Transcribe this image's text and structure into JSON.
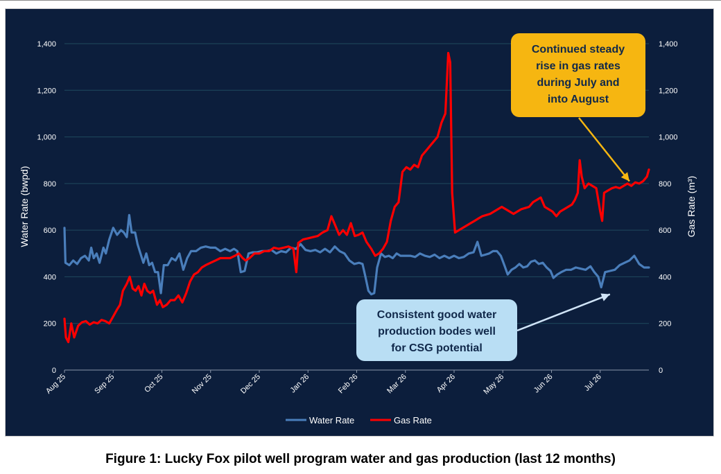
{
  "chart_data": {
    "type": "line",
    "x_categories": [
      "Aug 25",
      "Sep 25",
      "Oct 25",
      "Nov 25",
      "Dec 25",
      "Jan 26",
      "Feb 26",
      "Mar 26",
      "Apr 26",
      "May 26",
      "Jun 26",
      "Jul 26"
    ],
    "y_left_label": "Water Rate (bwpd)",
    "y_right_label": "Gas Rate (m³)",
    "y_left_ticks": [
      "0",
      "200",
      "400",
      "600",
      "800",
      "1,000",
      "1,200",
      "1,400"
    ],
    "y_right_ticks": [
      "0",
      "200",
      "400",
      "600",
      "800",
      "1,000",
      "1,200",
      "1,400"
    ],
    "ylim_left": [
      0,
      1400
    ],
    "ylim_right": [
      0,
      1400
    ],
    "grid": true,
    "legend_position": "bottom",
    "x_range_months": [
      0,
      12
    ],
    "series": [
      {
        "name": "Water Rate",
        "color": "#4a7ebb",
        "axis": "left",
        "points": [
          [
            0.0,
            610
          ],
          [
            0.02,
            460
          ],
          [
            0.1,
            450
          ],
          [
            0.18,
            470
          ],
          [
            0.26,
            455
          ],
          [
            0.34,
            480
          ],
          [
            0.42,
            490
          ],
          [
            0.5,
            470
          ],
          [
            0.55,
            525
          ],
          [
            0.6,
            480
          ],
          [
            0.66,
            500
          ],
          [
            0.72,
            460
          ],
          [
            0.8,
            525
          ],
          [
            0.85,
            500
          ],
          [
            0.92,
            560
          ],
          [
            1.0,
            610
          ],
          [
            1.08,
            580
          ],
          [
            1.16,
            600
          ],
          [
            1.22,
            590
          ],
          [
            1.28,
            570
          ],
          [
            1.33,
            665
          ],
          [
            1.38,
            590
          ],
          [
            1.45,
            590
          ],
          [
            1.5,
            540
          ],
          [
            1.56,
            500
          ],
          [
            1.62,
            460
          ],
          [
            1.68,
            500
          ],
          [
            1.74,
            450
          ],
          [
            1.8,
            460
          ],
          [
            1.86,
            420
          ],
          [
            1.92,
            420
          ],
          [
            1.98,
            330
          ],
          [
            2.04,
            450
          ],
          [
            2.12,
            450
          ],
          [
            2.2,
            480
          ],
          [
            2.28,
            470
          ],
          [
            2.36,
            500
          ],
          [
            2.44,
            430
          ],
          [
            2.52,
            480
          ],
          [
            2.6,
            510
          ],
          [
            2.7,
            510
          ],
          [
            2.8,
            525
          ],
          [
            2.9,
            530
          ],
          [
            3.0,
            525
          ],
          [
            3.1,
            525
          ],
          [
            3.2,
            510
          ],
          [
            3.3,
            520
          ],
          [
            3.4,
            510
          ],
          [
            3.48,
            520
          ],
          [
            3.55,
            510
          ],
          [
            3.62,
            420
          ],
          [
            3.7,
            425
          ],
          [
            3.78,
            500
          ],
          [
            3.86,
            505
          ],
          [
            3.95,
            505
          ],
          [
            4.05,
            510
          ],
          [
            4.15,
            510
          ],
          [
            4.25,
            515
          ],
          [
            4.35,
            500
          ],
          [
            4.45,
            510
          ],
          [
            4.55,
            505
          ],
          [
            4.65,
            525
          ],
          [
            4.75,
            520
          ],
          [
            4.85,
            540
          ],
          [
            4.95,
            515
          ],
          [
            5.05,
            510
          ],
          [
            5.15,
            515
          ],
          [
            5.25,
            505
          ],
          [
            5.35,
            520
          ],
          [
            5.45,
            505
          ],
          [
            5.55,
            530
          ],
          [
            5.65,
            510
          ],
          [
            5.75,
            500
          ],
          [
            5.85,
            470
          ],
          [
            5.95,
            455
          ],
          [
            6.05,
            460
          ],
          [
            6.12,
            455
          ],
          [
            6.18,
            400
          ],
          [
            6.24,
            340
          ],
          [
            6.3,
            325
          ],
          [
            6.36,
            330
          ],
          [
            6.42,
            440
          ],
          [
            6.5,
            500
          ],
          [
            6.58,
            485
          ],
          [
            6.66,
            490
          ],
          [
            6.74,
            480
          ],
          [
            6.82,
            500
          ],
          [
            6.9,
            490
          ],
          [
            7.0,
            490
          ],
          [
            7.1,
            490
          ],
          [
            7.2,
            485
          ],
          [
            7.3,
            500
          ],
          [
            7.4,
            490
          ],
          [
            7.5,
            485
          ],
          [
            7.6,
            495
          ],
          [
            7.7,
            480
          ],
          [
            7.8,
            490
          ],
          [
            7.9,
            480
          ],
          [
            8.0,
            490
          ],
          [
            8.1,
            480
          ],
          [
            8.2,
            485
          ],
          [
            8.3,
            500
          ],
          [
            8.4,
            505
          ],
          [
            8.48,
            550
          ],
          [
            8.56,
            490
          ],
          [
            8.64,
            495
          ],
          [
            8.72,
            500
          ],
          [
            8.8,
            510
          ],
          [
            8.88,
            510
          ],
          [
            8.96,
            490
          ],
          [
            9.04,
            445
          ],
          [
            9.1,
            410
          ],
          [
            9.18,
            430
          ],
          [
            9.26,
            440
          ],
          [
            9.34,
            455
          ],
          [
            9.42,
            440
          ],
          [
            9.5,
            445
          ],
          [
            9.58,
            465
          ],
          [
            9.66,
            470
          ],
          [
            9.74,
            455
          ],
          [
            9.82,
            460
          ],
          [
            9.9,
            440
          ],
          [
            9.98,
            425
          ],
          [
            10.04,
            395
          ],
          [
            10.12,
            410
          ],
          [
            10.2,
            420
          ],
          [
            10.3,
            430
          ],
          [
            10.4,
            430
          ],
          [
            10.5,
            440
          ],
          [
            10.6,
            435
          ],
          [
            10.7,
            430
          ],
          [
            10.8,
            445
          ],
          [
            10.88,
            420
          ],
          [
            10.96,
            400
          ],
          [
            11.02,
            355
          ],
          [
            11.1,
            420
          ],
          [
            11.2,
            425
          ],
          [
            11.3,
            430
          ],
          [
            11.4,
            450
          ],
          [
            11.5,
            460
          ],
          [
            11.6,
            470
          ],
          [
            11.7,
            490
          ],
          [
            11.8,
            455
          ],
          [
            11.9,
            440
          ],
          [
            12.0,
            440
          ]
        ]
      },
      {
        "name": "Gas Rate",
        "color": "#ff0000",
        "axis": "right",
        "points": [
          [
            0.0,
            220
          ],
          [
            0.03,
            140
          ],
          [
            0.08,
            120
          ],
          [
            0.14,
            200
          ],
          [
            0.2,
            140
          ],
          [
            0.28,
            190
          ],
          [
            0.36,
            205
          ],
          [
            0.44,
            210
          ],
          [
            0.52,
            195
          ],
          [
            0.6,
            205
          ],
          [
            0.68,
            200
          ],
          [
            0.76,
            215
          ],
          [
            0.84,
            210
          ],
          [
            0.92,
            200
          ],
          [
            1.0,
            230
          ],
          [
            1.08,
            260
          ],
          [
            1.14,
            280
          ],
          [
            1.2,
            340
          ],
          [
            1.28,
            370
          ],
          [
            1.34,
            400
          ],
          [
            1.4,
            350
          ],
          [
            1.46,
            340
          ],
          [
            1.52,
            360
          ],
          [
            1.58,
            320
          ],
          [
            1.64,
            370
          ],
          [
            1.7,
            340
          ],
          [
            1.76,
            330
          ],
          [
            1.82,
            340
          ],
          [
            1.9,
            280
          ],
          [
            1.96,
            300
          ],
          [
            2.02,
            270
          ],
          [
            2.1,
            280
          ],
          [
            2.18,
            300
          ],
          [
            2.26,
            300
          ],
          [
            2.34,
            320
          ],
          [
            2.42,
            290
          ],
          [
            2.5,
            330
          ],
          [
            2.58,
            380
          ],
          [
            2.66,
            410
          ],
          [
            2.74,
            420
          ],
          [
            2.82,
            440
          ],
          [
            2.9,
            450
          ],
          [
            3.0,
            460
          ],
          [
            3.1,
            470
          ],
          [
            3.2,
            480
          ],
          [
            3.3,
            480
          ],
          [
            3.4,
            480
          ],
          [
            3.5,
            490
          ],
          [
            3.58,
            500
          ],
          [
            3.66,
            480
          ],
          [
            3.72,
            470
          ],
          [
            3.8,
            480
          ],
          [
            3.9,
            500
          ],
          [
            4.0,
            500
          ],
          [
            4.1,
            510
          ],
          [
            4.2,
            510
          ],
          [
            4.3,
            525
          ],
          [
            4.4,
            520
          ],
          [
            4.5,
            525
          ],
          [
            4.6,
            530
          ],
          [
            4.7,
            520
          ],
          [
            4.76,
            420
          ],
          [
            4.8,
            545
          ],
          [
            4.9,
            560
          ],
          [
            5.0,
            565
          ],
          [
            5.1,
            570
          ],
          [
            5.2,
            575
          ],
          [
            5.3,
            590
          ],
          [
            5.4,
            600
          ],
          [
            5.48,
            660
          ],
          [
            5.56,
            620
          ],
          [
            5.64,
            580
          ],
          [
            5.72,
            600
          ],
          [
            5.8,
            580
          ],
          [
            5.88,
            630
          ],
          [
            5.96,
            575
          ],
          [
            6.04,
            580
          ],
          [
            6.12,
            590
          ],
          [
            6.2,
            550
          ],
          [
            6.3,
            520
          ],
          [
            6.38,
            490
          ],
          [
            6.46,
            500
          ],
          [
            6.54,
            520
          ],
          [
            6.62,
            550
          ],
          [
            6.7,
            640
          ],
          [
            6.78,
            700
          ],
          [
            6.86,
            720
          ],
          [
            6.94,
            850
          ],
          [
            7.02,
            870
          ],
          [
            7.1,
            860
          ],
          [
            7.18,
            880
          ],
          [
            7.26,
            870
          ],
          [
            7.34,
            920
          ],
          [
            7.42,
            940
          ],
          [
            7.5,
            960
          ],
          [
            7.58,
            980
          ],
          [
            7.66,
            1000
          ],
          [
            7.74,
            1060
          ],
          [
            7.82,
            1100
          ],
          [
            7.88,
            1360
          ],
          [
            7.92,
            1320
          ],
          [
            7.96,
            760
          ],
          [
            8.02,
            590
          ],
          [
            8.1,
            600
          ],
          [
            8.18,
            610
          ],
          [
            8.26,
            620
          ],
          [
            8.34,
            630
          ],
          [
            8.42,
            640
          ],
          [
            8.5,
            650
          ],
          [
            8.58,
            660
          ],
          [
            8.66,
            665
          ],
          [
            8.74,
            670
          ],
          [
            8.82,
            680
          ],
          [
            8.9,
            690
          ],
          [
            8.98,
            700
          ],
          [
            9.06,
            690
          ],
          [
            9.14,
            680
          ],
          [
            9.22,
            670
          ],
          [
            9.3,
            680
          ],
          [
            9.38,
            690
          ],
          [
            9.46,
            695
          ],
          [
            9.54,
            700
          ],
          [
            9.62,
            720
          ],
          [
            9.7,
            730
          ],
          [
            9.78,
            740
          ],
          [
            9.86,
            700
          ],
          [
            9.94,
            690
          ],
          [
            10.02,
            680
          ],
          [
            10.1,
            660
          ],
          [
            10.18,
            680
          ],
          [
            10.26,
            690
          ],
          [
            10.34,
            700
          ],
          [
            10.42,
            710
          ],
          [
            10.48,
            730
          ],
          [
            10.54,
            760
          ],
          [
            10.58,
            900
          ],
          [
            10.62,
            830
          ],
          [
            10.68,
            780
          ],
          [
            10.76,
            800
          ],
          [
            10.84,
            790
          ],
          [
            10.92,
            780
          ],
          [
            11.0,
            680
          ],
          [
            11.04,
            640
          ],
          [
            11.08,
            760
          ],
          [
            11.16,
            770
          ],
          [
            11.24,
            780
          ],
          [
            11.32,
            785
          ],
          [
            11.4,
            780
          ],
          [
            11.48,
            790
          ],
          [
            11.56,
            800
          ],
          [
            11.64,
            790
          ],
          [
            11.72,
            805
          ],
          [
            11.8,
            800
          ],
          [
            11.88,
            810
          ],
          [
            11.96,
            830
          ],
          [
            12.0,
            860
          ]
        ]
      }
    ],
    "annotations": [
      {
        "text": "Continued steady\nrise in gas rates\nduring July and\ninto August",
        "box_color": "#f6b611",
        "arrow_color": "#f6b611",
        "arrow_target_month": 11.6,
        "arrow_target_value": 810
      },
      {
        "text": "Consistent good water\nproduction bodes well\nfor CSG potential",
        "box_color": "#b9def4",
        "arrow_color": "#d0e4f7",
        "arrow_target_month": 11.2,
        "arrow_target_value": 325
      }
    ]
  },
  "caption": "Figure 1: Lucky Fox pilot well program water and gas production (last 12 months)"
}
